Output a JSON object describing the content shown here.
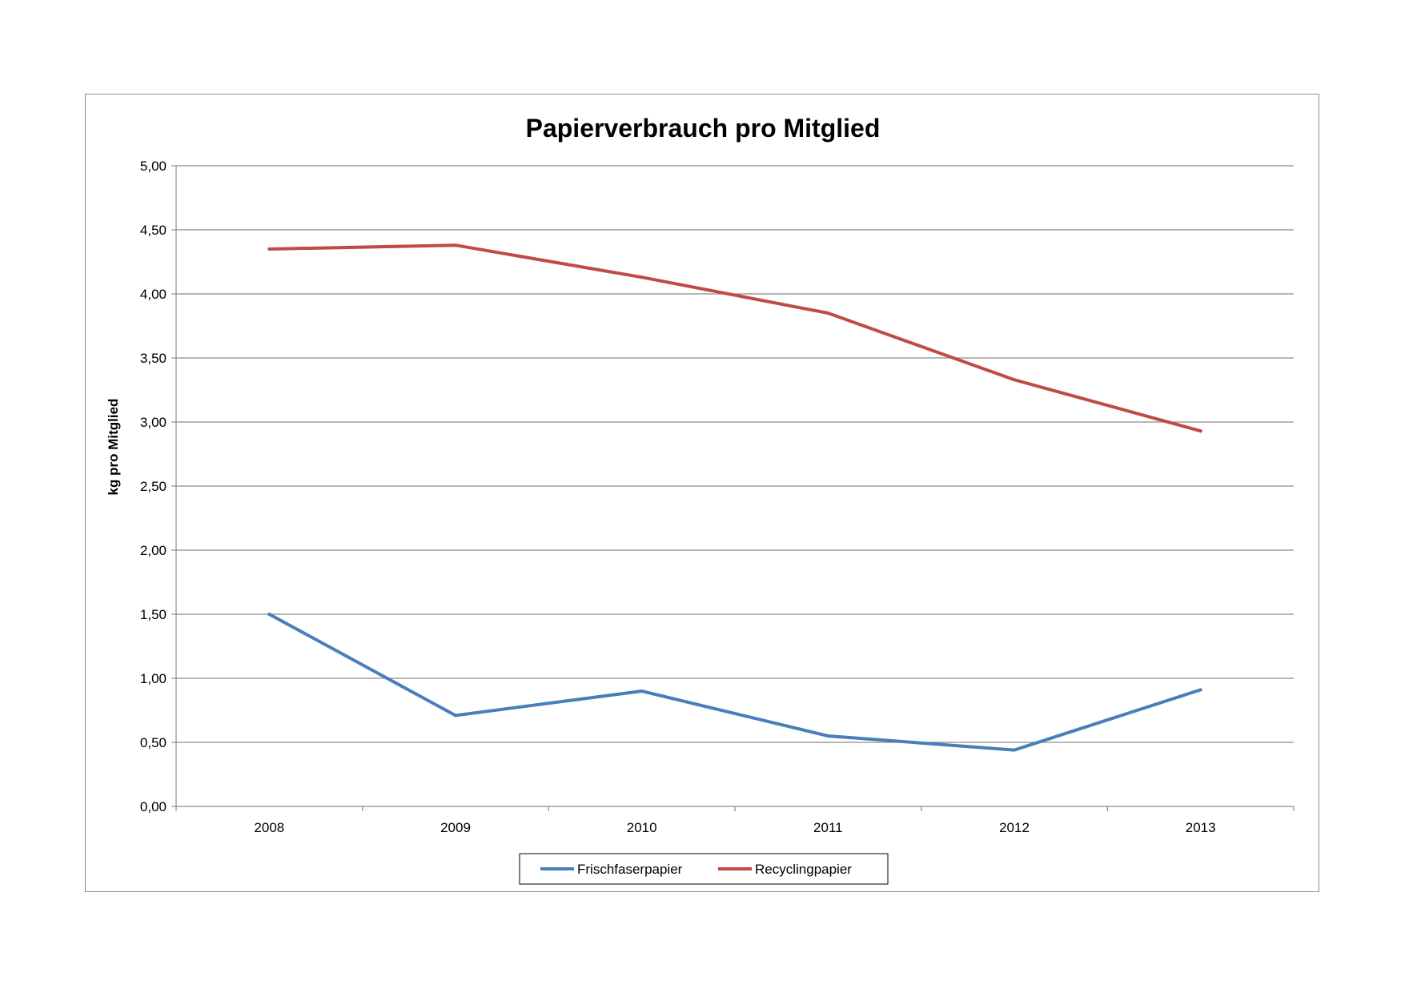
{
  "chart_data": {
    "type": "line",
    "title": "Papierverbrauch pro Mitglied",
    "xlabel": "",
    "ylabel": "kg pro Mitglied",
    "categories": [
      "2008",
      "2009",
      "2010",
      "2011",
      "2012",
      "2013"
    ],
    "ylim": [
      0,
      5
    ],
    "ytick_step": 0.5,
    "ytick_labels": [
      "0,00",
      "0,50",
      "1,00",
      "1,50",
      "2,00",
      "2,50",
      "3,00",
      "3,50",
      "4,00",
      "4,50",
      "5,00"
    ],
    "grid": true,
    "legend_position": "bottom",
    "series": [
      {
        "name": "Frischfaserpapier",
        "color": "#4a7ebb",
        "values": [
          1.5,
          0.71,
          0.9,
          0.55,
          0.44,
          0.91
        ]
      },
      {
        "name": "Recyclingpapier",
        "color": "#be4b48",
        "values": [
          4.35,
          4.38,
          4.13,
          3.85,
          3.33,
          2.93
        ]
      }
    ]
  }
}
